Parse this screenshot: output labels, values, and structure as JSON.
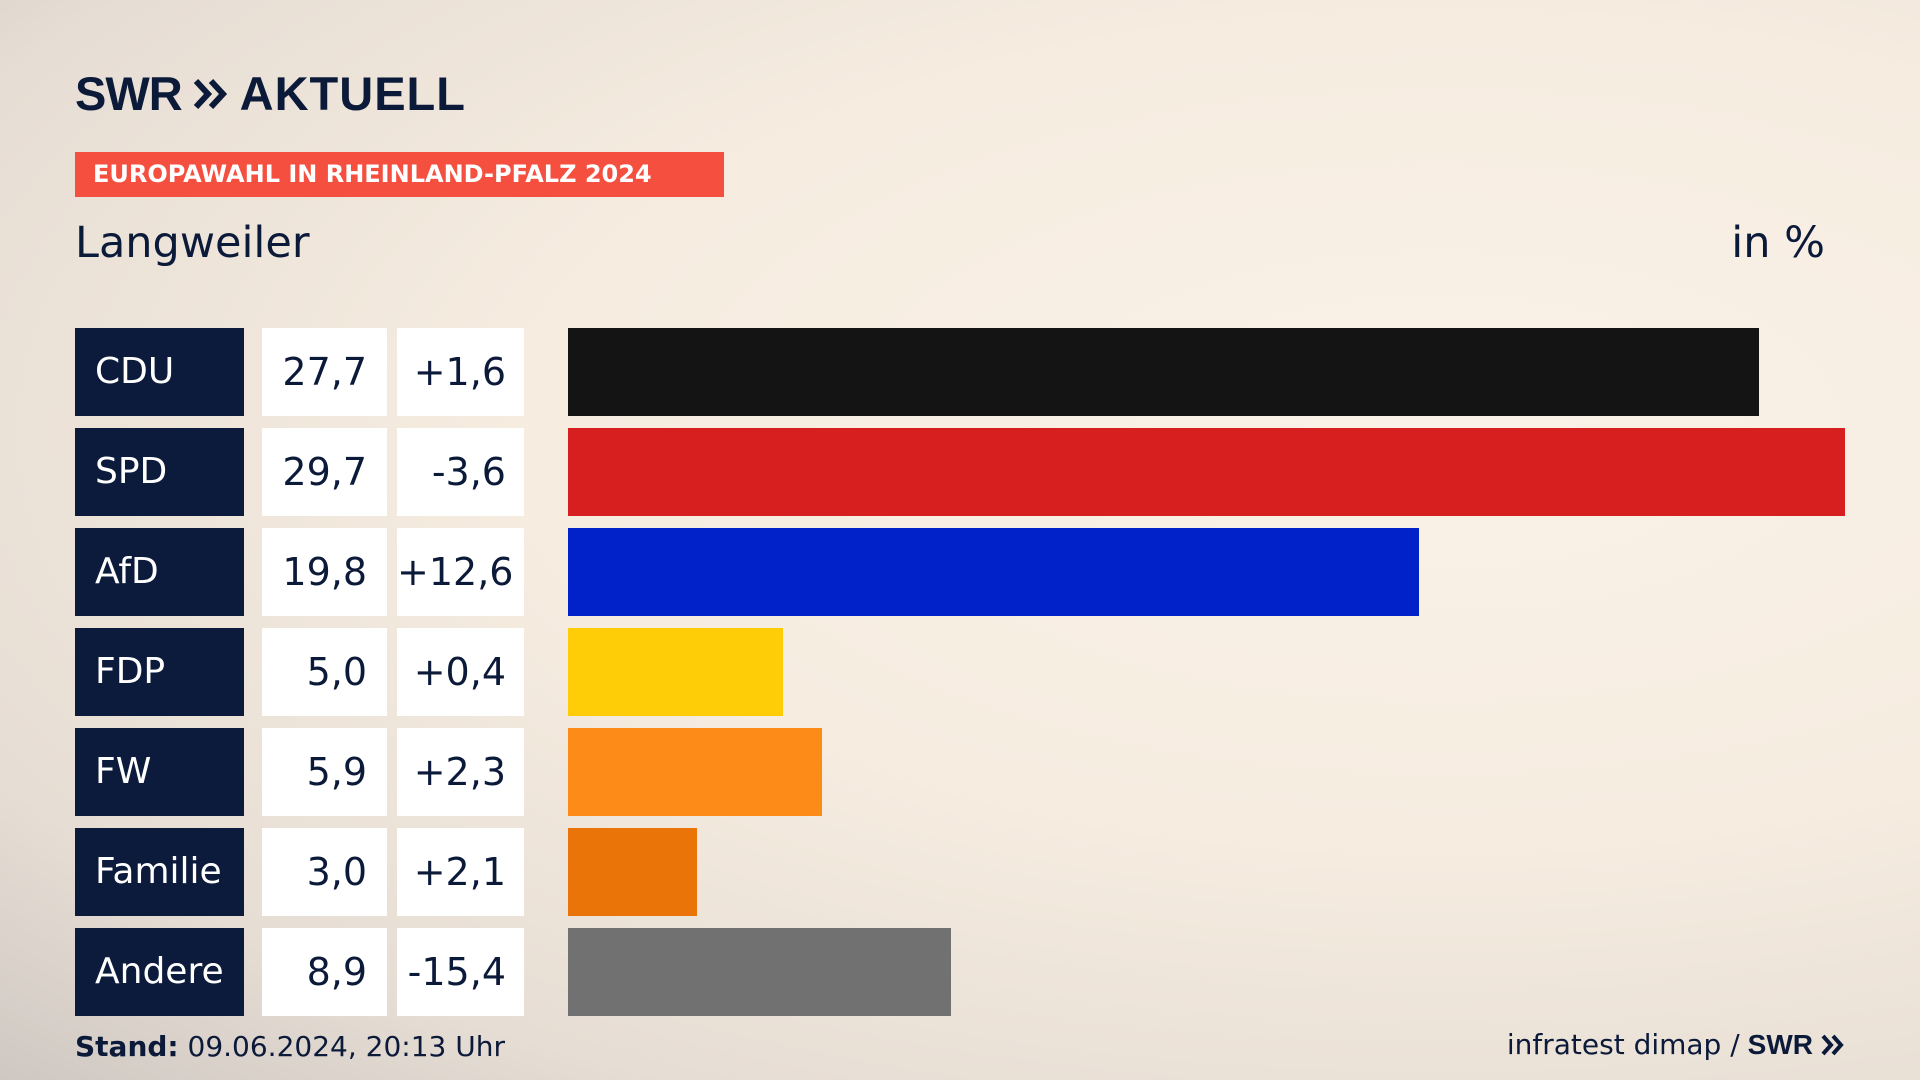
{
  "header": {
    "logo_text": "SWR",
    "logo_suffix": "AKTUELL",
    "banner": "EUROPAWAHL IN RHEINLAND-PFALZ 2024",
    "place": "Langweiler",
    "unit": "in %"
  },
  "colors": {
    "navy": "#0c1b3c",
    "banner": "#f5503f"
  },
  "chart_data": {
    "type": "bar",
    "orientation": "horizontal",
    "categories": [
      "CDU",
      "SPD",
      "AfD",
      "FDP",
      "FW",
      "Familie",
      "Andere"
    ],
    "values": [
      27.7,
      29.7,
      19.8,
      5.0,
      5.9,
      3.0,
      8.9
    ],
    "value_labels": [
      "27,7",
      "29,7",
      "19,8",
      "5,0",
      "5,9",
      "3,0",
      "8,9"
    ],
    "diff_labels": [
      "+1,6",
      "-3,6",
      "+12,6",
      "+0,4",
      "+2,3",
      "+2,1",
      "-15,4"
    ],
    "colors": [
      "#141414",
      "#d71f1f",
      "#0022c8",
      "#fecd08",
      "#fd8b17",
      "#ea7407",
      "#717171"
    ],
    "xlim": [
      0,
      29.7
    ]
  },
  "footer": {
    "stand_label": "Stand:",
    "stand_value": " 09.06.2024, 20:13 Uhr",
    "source": "infratest dimap /",
    "source_logo": "SWR"
  }
}
